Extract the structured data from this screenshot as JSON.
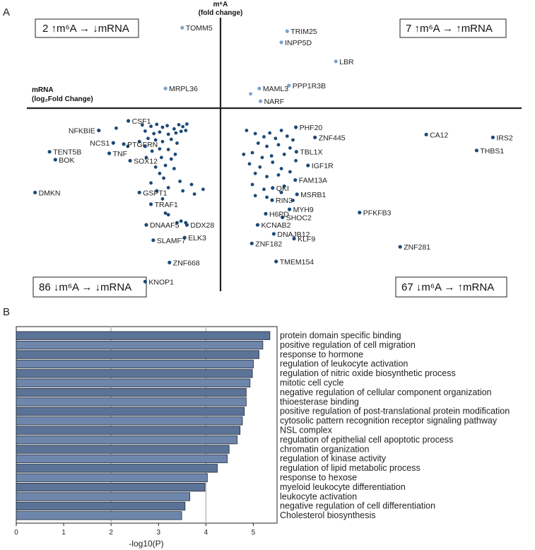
{
  "panel_a": {
    "label": "A"
  },
  "panel_b": {
    "label": "B"
  },
  "colors": {
    "dot_dark": "#1c4a78",
    "dot_light": "#7ba3cf",
    "bar_dark": "#5b7397",
    "bar_light": "#6e86ab",
    "grid": "#bbbbbb",
    "axis": "#222222"
  },
  "chart_data": [
    {
      "type": "scatter",
      "title": "",
      "ylabel_line1": "m⁶A",
      "ylabel_line2": "(fold change)",
      "xlabel_line1": "mRNA",
      "xlabel_line2": "(log₂Fold Change)",
      "xlim": [
        -3,
        5
      ],
      "ylim": [
        -5,
        3
      ],
      "quadrants": {
        "top_left": "2  ↑m⁶A → ↓mRNA",
        "top_right": "7 ↑m⁶A → ↑mRNA",
        "bottom_left": "86 ↓m⁶A → ↓mRNA",
        "bottom_right": "67 ↓m⁶A → ↑mRNA"
      },
      "labeled_points": [
        {
          "label": "TOMM5",
          "x": -0.66,
          "y": 2.53,
          "group": "up"
        },
        {
          "label": "TRIM25",
          "x": 1.15,
          "y": 2.42,
          "group": "up"
        },
        {
          "label": "INPP5D",
          "x": 1.05,
          "y": 2.07,
          "group": "up"
        },
        {
          "label": "LBR",
          "x": 1.99,
          "y": 1.47,
          "group": "up"
        },
        {
          "label": "MAML3",
          "x": 0.67,
          "y": 0.62,
          "group": "up"
        },
        {
          "label": "PPP1R3B",
          "x": 1.18,
          "y": 0.71,
          "group": "up"
        },
        {
          "label": "NARF",
          "x": 0.69,
          "y": 0.22,
          "group": "up"
        },
        {
          "label": "MRPL36",
          "x": -0.95,
          "y": 0.62,
          "group": "up"
        },
        {
          "label": "CSF1",
          "x": -1.59,
          "y": -0.4,
          "group": "down"
        },
        {
          "label": "NFKBIE",
          "x": -2.1,
          "y": -0.7,
          "group": "down"
        },
        {
          "label": "NCS1",
          "x": -1.85,
          "y": -1.09,
          "group": "down"
        },
        {
          "label": "PTGFRN",
          "x": -1.67,
          "y": -1.13,
          "group": "down"
        },
        {
          "label": "TNF",
          "x": -1.92,
          "y": -1.42,
          "group": "down"
        },
        {
          "label": "TENT5B",
          "x": -2.95,
          "y": -1.37,
          "group": "down"
        },
        {
          "label": "BOK",
          "x": -2.85,
          "y": -1.62,
          "group": "down"
        },
        {
          "label": "SOX12",
          "x": -1.56,
          "y": -1.65,
          "group": "down"
        },
        {
          "label": "DMKN",
          "x": -3.2,
          "y": -2.65,
          "group": "down"
        },
        {
          "label": "GSPT1",
          "x": -1.4,
          "y": -2.65,
          "group": "down"
        },
        {
          "label": "TRAF1",
          "x": -1.2,
          "y": -3.02,
          "group": "down"
        },
        {
          "label": "DNAAF5",
          "x": -1.28,
          "y": -3.67,
          "group": "down"
        },
        {
          "label": "DDX28",
          "x": -0.58,
          "y": -3.67,
          "group": "down"
        },
        {
          "label": "ELK3",
          "x": -0.62,
          "y": -4.07,
          "group": "down"
        },
        {
          "label": "SLAMF7",
          "x": -1.16,
          "y": -4.15,
          "group": "down"
        },
        {
          "label": "ZNF668",
          "x": -0.88,
          "y": -4.85,
          "group": "down"
        },
        {
          "label": "KNOP1",
          "x": -1.3,
          "y": -5.45,
          "group": "down"
        },
        {
          "label": "PHF20",
          "x": 1.3,
          "y": -0.6,
          "group": "down"
        },
        {
          "label": "ZNF445",
          "x": 1.63,
          "y": -0.92,
          "group": "down"
        },
        {
          "label": "CA12",
          "x": 3.55,
          "y": -0.83,
          "group": "down"
        },
        {
          "label": "IRS2",
          "x": 4.7,
          "y": -0.92,
          "group": "down"
        },
        {
          "label": "THBS1",
          "x": 4.42,
          "y": -1.33,
          "group": "down"
        },
        {
          "label": "TBL1X",
          "x": 1.31,
          "y": -1.37,
          "group": "down"
        },
        {
          "label": "IGF1R",
          "x": 1.51,
          "y": -1.8,
          "group": "down"
        },
        {
          "label": "FAM13A",
          "x": 1.29,
          "y": -2.26,
          "group": "down"
        },
        {
          "label": "QKI",
          "x": 0.9,
          "y": -2.51,
          "group": "down"
        },
        {
          "label": "MSRB1",
          "x": 1.32,
          "y": -2.71,
          "group": "down"
        },
        {
          "label": "RIN3",
          "x": 0.89,
          "y": -2.89,
          "group": "down"
        },
        {
          "label": "MYH9",
          "x": 1.19,
          "y": -3.18,
          "group": "down"
        },
        {
          "label": "PFKFB3",
          "x": 2.4,
          "y": -3.28,
          "group": "down"
        },
        {
          "label": "H6PD",
          "x": 0.78,
          "y": -3.32,
          "group": "down"
        },
        {
          "label": "SHOC2",
          "x": 1.07,
          "y": -3.43,
          "group": "down"
        },
        {
          "label": "KCNAB2",
          "x": 0.64,
          "y": -3.67,
          "group": "down"
        },
        {
          "label": "DNAJB12",
          "x": 0.92,
          "y": -3.95,
          "group": "down"
        },
        {
          "label": "KLF9",
          "x": 1.27,
          "y": -4.1,
          "group": "down"
        },
        {
          "label": "ZNF182",
          "x": 0.54,
          "y": -4.25,
          "group": "down"
        },
        {
          "label": "ZNF281",
          "x": 3.1,
          "y": -4.36,
          "group": "down"
        },
        {
          "label": "TMEM154",
          "x": 0.96,
          "y": -4.82,
          "group": "down"
        }
      ],
      "unlabeled_points": [
        {
          "x": 0.52,
          "y": 0.45,
          "group": "up"
        },
        {
          "x": -1.35,
          "y": -0.53,
          "group": "down"
        },
        {
          "x": -1.2,
          "y": -0.57,
          "group": "down"
        },
        {
          "x": -1.1,
          "y": -0.51,
          "group": "down"
        },
        {
          "x": -1.0,
          "y": -0.6,
          "group": "down"
        },
        {
          "x": -0.92,
          "y": -0.55,
          "group": "down"
        },
        {
          "x": -0.8,
          "y": -0.65,
          "group": "down"
        },
        {
          "x": -0.72,
          "y": -0.52,
          "group": "down"
        },
        {
          "x": -0.65,
          "y": -0.58,
          "group": "down"
        },
        {
          "x": -0.58,
          "y": -0.5,
          "group": "down"
        },
        {
          "x": -1.8,
          "y": -0.63,
          "group": "down"
        },
        {
          "x": -1.3,
          "y": -0.72,
          "group": "down"
        },
        {
          "x": -1.15,
          "y": -0.8,
          "group": "down"
        },
        {
          "x": -1.05,
          "y": -0.75,
          "group": "down"
        },
        {
          "x": -0.9,
          "y": -0.82,
          "group": "down"
        },
        {
          "x": -0.77,
          "y": -0.78,
          "group": "down"
        },
        {
          "x": -0.68,
          "y": -0.73,
          "group": "down"
        },
        {
          "x": -0.6,
          "y": -0.7,
          "group": "down"
        },
        {
          "x": -1.25,
          "y": -0.95,
          "group": "down"
        },
        {
          "x": -1.12,
          "y": -1.0,
          "group": "down"
        },
        {
          "x": -1.0,
          "y": -1.05,
          "group": "down"
        },
        {
          "x": -0.85,
          "y": -0.98,
          "group": "down"
        },
        {
          "x": -0.75,
          "y": -1.1,
          "group": "down"
        },
        {
          "x": -1.4,
          "y": -1.05,
          "group": "down"
        },
        {
          "x": -1.6,
          "y": -1.2,
          "group": "down"
        },
        {
          "x": -1.3,
          "y": -1.2,
          "group": "down"
        },
        {
          "x": -1.18,
          "y": -1.35,
          "group": "down"
        },
        {
          "x": -1.05,
          "y": -1.28,
          "group": "down"
        },
        {
          "x": -0.9,
          "y": -1.3,
          "group": "down"
        },
        {
          "x": -0.78,
          "y": -1.45,
          "group": "down"
        },
        {
          "x": -1.28,
          "y": -1.55,
          "group": "down"
        },
        {
          "x": -1.02,
          "y": -1.55,
          "group": "down"
        },
        {
          "x": -0.85,
          "y": -1.6,
          "group": "down"
        },
        {
          "x": -0.95,
          "y": -1.8,
          "group": "down"
        },
        {
          "x": -1.12,
          "y": -1.85,
          "group": "down"
        },
        {
          "x": -0.8,
          "y": -1.9,
          "group": "down"
        },
        {
          "x": -1.05,
          "y": -2.05,
          "group": "down"
        },
        {
          "x": -0.98,
          "y": -2.2,
          "group": "down"
        },
        {
          "x": -0.7,
          "y": -2.3,
          "group": "down"
        },
        {
          "x": -1.2,
          "y": -2.35,
          "group": "down"
        },
        {
          "x": -0.5,
          "y": -2.4,
          "group": "down"
        },
        {
          "x": -0.9,
          "y": -2.5,
          "group": "down"
        },
        {
          "x": -0.3,
          "y": -2.55,
          "group": "down"
        },
        {
          "x": -1.1,
          "y": -2.6,
          "group": "down"
        },
        {
          "x": -0.65,
          "y": -2.6,
          "group": "down"
        },
        {
          "x": -0.45,
          "y": -2.7,
          "group": "down"
        },
        {
          "x": -1.0,
          "y": -2.85,
          "group": "down"
        },
        {
          "x": -0.95,
          "y": -3.3,
          "group": "down"
        },
        {
          "x": -0.9,
          "y": -3.35,
          "group": "down"
        },
        {
          "x": -0.75,
          "y": -3.6,
          "group": "down"
        },
        {
          "x": -0.68,
          "y": -3.55,
          "group": "down"
        },
        {
          "x": -0.6,
          "y": -3.6,
          "group": "down"
        },
        {
          "x": 0.45,
          "y": -0.7,
          "group": "down"
        },
        {
          "x": 0.6,
          "y": -0.8,
          "group": "down"
        },
        {
          "x": 0.75,
          "y": -0.9,
          "group": "down"
        },
        {
          "x": 0.85,
          "y": -0.78,
          "group": "down"
        },
        {
          "x": 0.95,
          "y": -0.95,
          "group": "down"
        },
        {
          "x": 1.05,
          "y": -0.7,
          "group": "down"
        },
        {
          "x": 1.15,
          "y": -0.88,
          "group": "down"
        },
        {
          "x": 1.25,
          "y": -1.0,
          "group": "down"
        },
        {
          "x": 0.65,
          "y": -1.1,
          "group": "down"
        },
        {
          "x": 0.8,
          "y": -1.2,
          "group": "down"
        },
        {
          "x": 1.0,
          "y": -1.15,
          "group": "down"
        },
        {
          "x": 1.2,
          "y": -1.25,
          "group": "down"
        },
        {
          "x": 0.4,
          "y": -1.45,
          "group": "down"
        },
        {
          "x": 0.55,
          "y": -1.4,
          "group": "down"
        },
        {
          "x": 0.72,
          "y": -1.55,
          "group": "down"
        },
        {
          "x": 0.88,
          "y": -1.5,
          "group": "down"
        },
        {
          "x": 1.1,
          "y": -1.45,
          "group": "down"
        },
        {
          "x": 0.5,
          "y": -1.75,
          "group": "down"
        },
        {
          "x": 0.68,
          "y": -1.85,
          "group": "down"
        },
        {
          "x": 0.9,
          "y": -1.7,
          "group": "down"
        },
        {
          "x": 1.05,
          "y": -1.9,
          "group": "down"
        },
        {
          "x": 1.3,
          "y": -1.65,
          "group": "down"
        },
        {
          "x": 0.6,
          "y": -2.05,
          "group": "down"
        },
        {
          "x": 0.8,
          "y": -2.15,
          "group": "down"
        },
        {
          "x": 1.0,
          "y": -2.1,
          "group": "down"
        },
        {
          "x": 1.2,
          "y": -2.0,
          "group": "down"
        },
        {
          "x": 0.55,
          "y": -2.4,
          "group": "down"
        },
        {
          "x": 0.75,
          "y": -2.55,
          "group": "down"
        },
        {
          "x": 1.1,
          "y": -2.45,
          "group": "down"
        },
        {
          "x": 0.6,
          "y": -2.75,
          "group": "down"
        },
        {
          "x": 0.8,
          "y": -2.8,
          "group": "down"
        },
        {
          "x": 1.05,
          "y": -2.65,
          "group": "down"
        },
        {
          "x": 1.25,
          "y": -2.9,
          "group": "down"
        }
      ]
    },
    {
      "type": "bar",
      "orientation": "horizontal",
      "title": "",
      "xlabel": "-log10(P)",
      "xlim": [
        0,
        5.5
      ],
      "xticks": [
        0,
        1,
        2,
        3,
        4,
        5
      ],
      "categories": [
        "protein domain specific binding",
        "positive regulation of cell migration",
        "response to hormone",
        "regulation of leukocyte activation",
        "regulation of nitric oxide biosynthetic process",
        "mitotic cell cycle",
        "negative regulation of cellular component organization",
        "thioesterase binding",
        "positive regulation of post-translational protein modification",
        "cytosolic pattern recognition receptor signaling pathway",
        "NSL complex",
        "regulation of epithelial cell apoptotic process",
        "chromatin organization",
        "regulation of kinase activity",
        "regulation of lipid metabolic process",
        "response to hexose",
        "myeloid leukocyte differentiation",
        "leukocyte activation",
        "negative regulation of cell differentiation",
        "Cholesterol biosynthesis"
      ],
      "values": [
        5.35,
        5.2,
        5.12,
        5.0,
        4.98,
        4.93,
        4.85,
        4.85,
        4.81,
        4.77,
        4.72,
        4.66,
        4.49,
        4.45,
        4.24,
        4.03,
        3.98,
        3.66,
        3.56,
        3.49
      ]
    }
  ]
}
